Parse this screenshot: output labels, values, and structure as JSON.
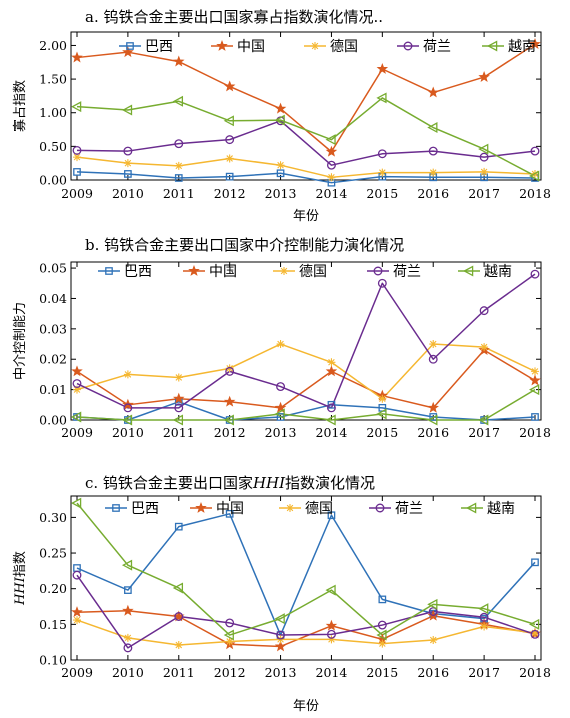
{
  "chart_data": [
    {
      "type": "line",
      "title": "a. 钨铁合金主要出口国家寡占指数演化情况..",
      "xlabel": "年份",
      "ylabel": "寡占指数",
      "x": [
        2009,
        2010,
        2011,
        2012,
        2013,
        2014,
        2015,
        2016,
        2017,
        2018
      ],
      "ylim": [
        0,
        2.2
      ],
      "yticks": [
        0.0,
        0.5,
        1.0,
        1.5,
        2.0
      ],
      "ytick_labels": [
        "0.00",
        "0.50",
        "1.00",
        "1.50",
        "2.00"
      ],
      "legend": "top",
      "series": [
        {
          "name": "巴西",
          "color": "#2f72b8",
          "marker": "square",
          "values": [
            0.12,
            0.09,
            0.03,
            0.05,
            0.1,
            -0.04,
            0.05,
            0.04,
            0.04,
            0.03
          ]
        },
        {
          "name": "中国",
          "color": "#d95a1e",
          "marker": "star",
          "values": [
            1.82,
            1.9,
            1.76,
            1.39,
            1.06,
            0.42,
            1.65,
            1.3,
            1.53,
            2.02
          ]
        },
        {
          "name": "德国",
          "color": "#f5b731",
          "marker": "asterisk",
          "values": [
            0.34,
            0.25,
            0.21,
            0.32,
            0.22,
            0.04,
            0.11,
            0.11,
            0.12,
            0.09
          ]
        },
        {
          "name": "荷兰",
          "color": "#6a2c8f",
          "marker": "circle",
          "values": [
            0.44,
            0.43,
            0.54,
            0.6,
            0.88,
            0.22,
            0.39,
            0.43,
            0.34,
            0.43
          ]
        },
        {
          "name": "越南",
          "color": "#77ac30",
          "marker": "triangle-left",
          "values": [
            1.09,
            1.04,
            1.17,
            0.88,
            0.89,
            0.6,
            1.22,
            0.78,
            0.46,
            0.06
          ]
        }
      ]
    },
    {
      "type": "line",
      "title": "b. 钨铁合金主要出口国家中介控制能力演化情况",
      "xlabel": "",
      "ylabel": "中介控制能力",
      "x": [
        2009,
        2010,
        2011,
        2012,
        2013,
        2014,
        2015,
        2016,
        2017,
        2018
      ],
      "ylim": [
        0,
        0.052
      ],
      "yticks": [
        0,
        0.01,
        0.02,
        0.03,
        0.04,
        0.05
      ],
      "ytick_labels": [
        "0.00",
        "0.01",
        "0.02",
        "0.03",
        "0.04",
        "0.05"
      ],
      "legend": "top",
      "series": [
        {
          "name": "巴西",
          "color": "#2f72b8",
          "marker": "square",
          "values": [
            0.001,
            0.0,
            0.006,
            0.0,
            0.001,
            0.005,
            0.004,
            0.001,
            0.0,
            0.001
          ]
        },
        {
          "name": "中国",
          "color": "#d95a1e",
          "marker": "star",
          "values": [
            0.016,
            0.005,
            0.007,
            0.006,
            0.004,
            0.016,
            0.008,
            0.004,
            0.023,
            0.013
          ]
        },
        {
          "name": "德国",
          "color": "#f5b731",
          "marker": "asterisk",
          "values": [
            0.01,
            0.015,
            0.014,
            0.017,
            0.025,
            0.019,
            0.007,
            0.025,
            0.024,
            0.016
          ]
        },
        {
          "name": "荷兰",
          "color": "#6a2c8f",
          "marker": "circle",
          "values": [
            0.012,
            0.004,
            0.004,
            0.016,
            0.011,
            0.004,
            0.045,
            0.02,
            0.036,
            0.048
          ]
        },
        {
          "name": "越南",
          "color": "#77ac30",
          "marker": "triangle-left",
          "values": [
            0.001,
            0.0,
            0.0,
            0.0,
            0.002,
            0.0,
            0.002,
            0.0,
            0.0,
            0.01
          ]
        }
      ]
    },
    {
      "type": "line",
      "title": "c. 钨铁合金主要出口国家HHI指数演化情况",
      "xlabel": "年份",
      "ylabel": "HHI指数",
      "x": [
        2009,
        2010,
        2011,
        2012,
        2013,
        2014,
        2015,
        2016,
        2017,
        2018
      ],
      "ylim": [
        0.1,
        0.33
      ],
      "yticks": [
        0.1,
        0.15,
        0.2,
        0.25,
        0.3
      ],
      "ytick_labels": [
        "0.10",
        "0.15",
        "0.20",
        "0.25",
        "0.30"
      ],
      "legend": "top",
      "series": [
        {
          "name": "巴西",
          "color": "#2f72b8",
          "marker": "square",
          "values": [
            0.229,
            0.198,
            0.287,
            0.305,
            0.135,
            0.303,
            0.185,
            0.165,
            0.158,
            0.237
          ]
        },
        {
          "name": "中国",
          "color": "#d95a1e",
          "marker": "star",
          "values": [
            0.167,
            0.169,
            0.161,
            0.122,
            0.119,
            0.148,
            0.129,
            0.162,
            0.15,
            0.137
          ]
        },
        {
          "name": "德国",
          "color": "#f5b731",
          "marker": "asterisk",
          "values": [
            0.156,
            0.131,
            0.121,
            0.126,
            0.129,
            0.129,
            0.123,
            0.128,
            0.147,
            0.138
          ]
        },
        {
          "name": "荷兰",
          "color": "#6a2c8f",
          "marker": "circle",
          "values": [
            0.219,
            0.117,
            0.161,
            0.152,
            0.135,
            0.136,
            0.149,
            0.168,
            0.16,
            0.136
          ]
        },
        {
          "name": "越南",
          "color": "#77ac30",
          "marker": "triangle-left",
          "values": [
            0.32,
            0.233,
            0.201,
            0.135,
            0.158,
            0.198,
            0.135,
            0.178,
            0.172,
            0.15
          ]
        }
      ]
    }
  ]
}
